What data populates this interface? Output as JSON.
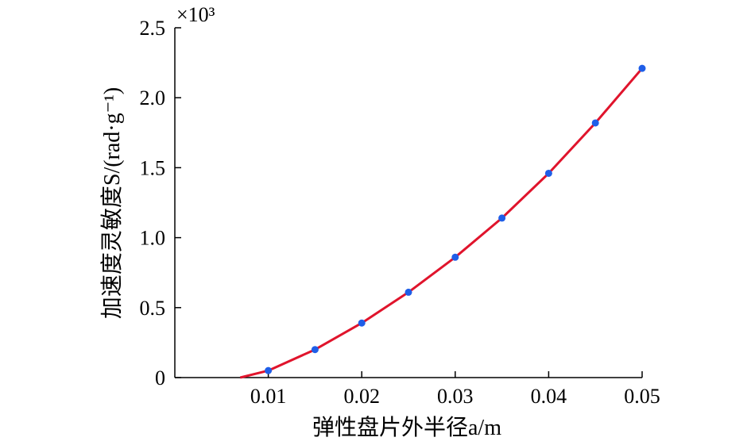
{
  "chart_data": {
    "type": "line",
    "title": "",
    "xlabel": "弹性盘片外半径a/m",
    "ylabel": "加速度灵敏度S/(rad·g⁻¹)",
    "y_multiplier": "×10³",
    "xlim": [
      0,
      0.05
    ],
    "ylim": [
      0,
      2.5
    ],
    "x_ticks": [
      "0.01",
      "0.02",
      "0.03",
      "0.04",
      "0.05"
    ],
    "y_ticks": [
      "0",
      "0.5",
      "1.0",
      "1.5",
      "2.0",
      "2.5"
    ],
    "grid": false,
    "legend": "none",
    "series": [
      {
        "style": "line",
        "color": "#e0142c",
        "x": [
          0.007,
          0.01,
          0.015,
          0.02,
          0.025,
          0.03,
          0.035,
          0.04,
          0.045,
          0.05
        ],
        "values": [
          0.0,
          0.05,
          0.2,
          0.39,
          0.61,
          0.86,
          1.14,
          1.46,
          1.82,
          2.21
        ]
      },
      {
        "style": "markers",
        "color": "#1f5ee8",
        "x": [
          0.01,
          0.015,
          0.02,
          0.025,
          0.03,
          0.035,
          0.04,
          0.045,
          0.05
        ],
        "values": [
          0.05,
          0.2,
          0.39,
          0.61,
          0.86,
          1.14,
          1.46,
          1.82,
          2.21
        ]
      }
    ]
  }
}
